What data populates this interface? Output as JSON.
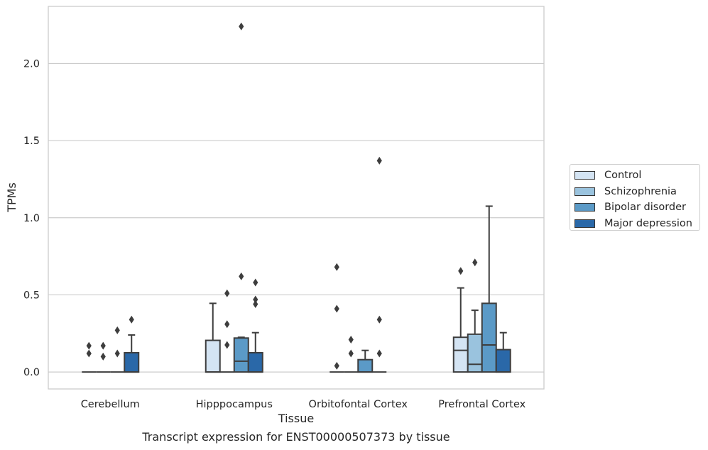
{
  "chart_data": {
    "type": "boxplot",
    "caption": "Transcript expression for ENST00000507373 by tissue",
    "xlabel": "Tissue",
    "ylabel": "TPMs",
    "ylim": [
      -0.11,
      2.37
    ],
    "yticks": [
      {
        "value": 0.0,
        "label": "0.0"
      },
      {
        "value": 0.5,
        "label": "0.5"
      },
      {
        "value": 1.0,
        "label": "1.0"
      },
      {
        "value": 1.5,
        "label": "1.5"
      },
      {
        "value": 2.0,
        "label": "2.0"
      }
    ],
    "grid": "horizontal",
    "legend_position": "right",
    "categories": [
      "Cerebellum",
      "Hipppocampus",
      "Orbitofontal Cortex",
      "Prefrontal Cortex"
    ],
    "series": [
      {
        "name": "Control",
        "color": "#d4e4f3",
        "boxes": [
          {
            "q1": 0,
            "median": 0,
            "q3": 0,
            "whisker_low": 0,
            "whisker_high": 0,
            "outliers": [
              0.17,
              0.12
            ]
          },
          {
            "q1": 0,
            "median": 0,
            "q3": 0.205,
            "whisker_low": 0,
            "whisker_high": 0.445,
            "outliers": []
          },
          {
            "q1": 0,
            "median": 0,
            "q3": 0,
            "whisker_low": 0,
            "whisker_high": 0,
            "outliers": [
              0.68,
              0.41,
              0.04
            ]
          },
          {
            "q1": 0,
            "median": 0.14,
            "q3": 0.225,
            "whisker_low": 0,
            "whisker_high": 0.545,
            "outliers": [
              0.655
            ]
          }
        ]
      },
      {
        "name": "Schizophrenia",
        "color": "#9ac3de",
        "boxes": [
          {
            "q1": 0,
            "median": 0,
            "q3": 0,
            "whisker_low": 0,
            "whisker_high": 0,
            "outliers": [
              0.17,
              0.1
            ]
          },
          {
            "q1": 0,
            "median": 0,
            "q3": 0,
            "whisker_low": 0,
            "whisker_high": 0,
            "outliers": [
              0.51,
              0.31,
              0.175
            ]
          },
          {
            "q1": 0,
            "median": 0,
            "q3": 0,
            "whisker_low": 0,
            "whisker_high": 0,
            "outliers": [
              0.21,
              0.12
            ]
          },
          {
            "q1": 0,
            "median": 0.05,
            "q3": 0.245,
            "whisker_low": 0,
            "whisker_high": 0.4,
            "outliers": [
              0.71
            ]
          }
        ]
      },
      {
        "name": "Bipolar disorder",
        "color": "#5b9ac7",
        "boxes": [
          {
            "q1": 0,
            "median": 0,
            "q3": 0,
            "whisker_low": 0,
            "whisker_high": 0,
            "outliers": [
              0.27,
              0.12
            ]
          },
          {
            "q1": 0,
            "median": 0.07,
            "q3": 0.22,
            "whisker_low": 0,
            "whisker_high": 0.225,
            "outliers": [
              2.24,
              0.62
            ]
          },
          {
            "q1": 0,
            "median": 0,
            "q3": 0.08,
            "whisker_low": 0,
            "whisker_high": 0.14,
            "outliers": []
          },
          {
            "q1": 0,
            "median": 0.175,
            "q3": 0.445,
            "whisker_low": 0,
            "whisker_high": 1.075,
            "outliers": []
          }
        ]
      },
      {
        "name": "Major depression",
        "color": "#2a68a8",
        "boxes": [
          {
            "q1": 0,
            "median": 0,
            "q3": 0.125,
            "whisker_low": 0,
            "whisker_high": 0.24,
            "outliers": [
              0.34
            ]
          },
          {
            "q1": 0,
            "median": 0,
            "q3": 0.125,
            "whisker_low": 0,
            "whisker_high": 0.255,
            "outliers": [
              0.58,
              0.47,
              0.44
            ]
          },
          {
            "q1": 0,
            "median": 0,
            "q3": 0,
            "whisker_low": 0,
            "whisker_high": 0,
            "outliers": [
              1.37,
              0.34,
              0.12
            ]
          },
          {
            "q1": 0,
            "median": 0,
            "q3": 0.145,
            "whisker_low": 0,
            "whisker_high": 0.255,
            "outliers": []
          }
        ]
      }
    ]
  }
}
